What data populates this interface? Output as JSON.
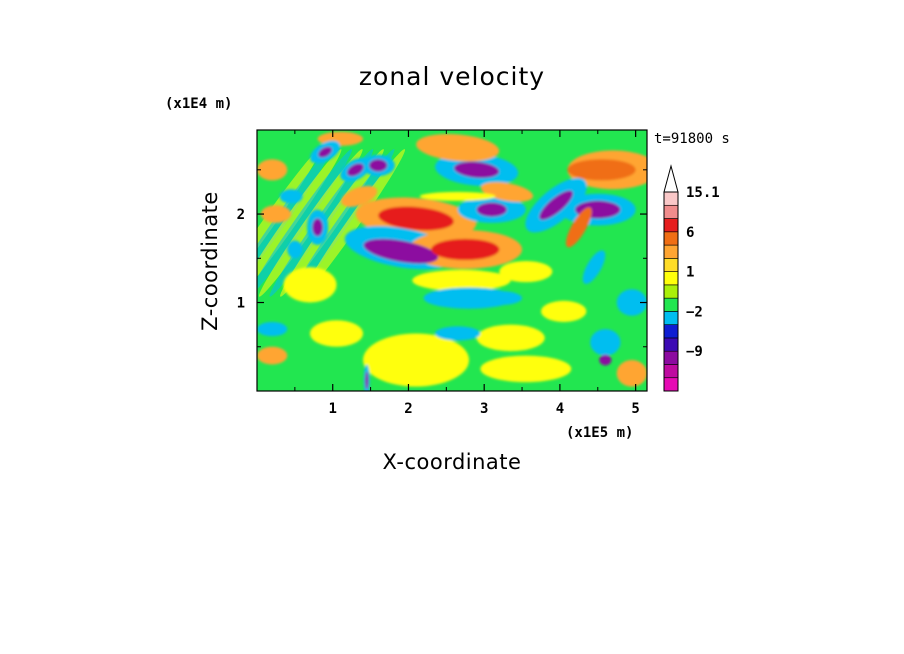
{
  "chart_data": {
    "type": "heatmap",
    "title": "zonal velocity",
    "xlabel": "X-coordinate",
    "ylabel": "Z-coordinate",
    "x_scale_label": "(x1E5 m)",
    "y_scale_label": "(x1E4 m)",
    "time_label": "t=91800 s",
    "xlim": [
      0,
      5.15
    ],
    "ylim": [
      0,
      2.95
    ],
    "x_ticks": [
      "1",
      "2",
      "3",
      "4",
      "5"
    ],
    "y_ticks": [
      "1",
      "2"
    ],
    "colorbar": {
      "levels": [
        {
          "value": -13.6,
          "color": "#e60ab4"
        },
        {
          "value": -11.3,
          "color": "#be0aa0"
        },
        {
          "value": -9,
          "color": "#8c0aa0"
        },
        {
          "value": -6.7,
          "color": "#3c0ab4"
        },
        {
          "value": -4.3,
          "color": "#0f1ed2"
        },
        {
          "value": -2,
          "color": "#00bef0"
        },
        {
          "value": -1,
          "color": "#22e650"
        },
        {
          "value": 0,
          "color": "#aaf00a"
        },
        {
          "value": 1,
          "color": "#ffff0a"
        },
        {
          "value": 2,
          "color": "#ffdc28"
        },
        {
          "value": 3,
          "color": "#ffa532"
        },
        {
          "value": 6,
          "color": "#f06e14"
        },
        {
          "value": 9,
          "color": "#e61e1e"
        },
        {
          "value": 12,
          "color": "#f08c8c"
        },
        {
          "value": 15.1,
          "color": "#fac8c8"
        }
      ],
      "tick_labels": [
        "15.1",
        "6",
        "1",
        "-2",
        "-9"
      ],
      "extend_top_color": "#ffffff"
    },
    "features": [
      {
        "x": 1.9,
        "z": 1.58,
        "rx": 0.5,
        "rz": 0.12,
        "angle": -10,
        "value": -10
      },
      {
        "x": 1.9,
        "z": 1.62,
        "rx": 0.75,
        "rz": 0.22,
        "angle": -10,
        "value": -3
      },
      {
        "x": 2.1,
        "z": 1.95,
        "rx": 0.5,
        "rz": 0.13,
        "angle": -5,
        "value": 8
      },
      {
        "x": 2.1,
        "z": 1.95,
        "rx": 0.8,
        "rz": 0.23,
        "angle": -5,
        "value": 3
      },
      {
        "x": 2.75,
        "z": 1.6,
        "rx": 0.45,
        "rz": 0.12,
        "angle": 0,
        "value": 8
      },
      {
        "x": 2.75,
        "z": 1.6,
        "rx": 0.75,
        "rz": 0.22,
        "angle": 0,
        "value": 3
      },
      {
        "x": 2.9,
        "z": 2.5,
        "rx": 0.3,
        "rz": 0.09,
        "angle": -5,
        "value": -10
      },
      {
        "x": 2.9,
        "z": 2.5,
        "rx": 0.55,
        "rz": 0.18,
        "angle": -5,
        "value": -3
      },
      {
        "x": 2.65,
        "z": 2.75,
        "rx": 0.55,
        "rz": 0.15,
        "angle": -5,
        "value": 3
      },
      {
        "x": 3.1,
        "z": 2.05,
        "rx": 0.2,
        "rz": 0.08,
        "angle": 0,
        "value": -10
      },
      {
        "x": 3.1,
        "z": 2.05,
        "rx": 0.45,
        "rz": 0.15,
        "angle": 0,
        "value": -3
      },
      {
        "x": 3.3,
        "z": 2.25,
        "rx": 0.35,
        "rz": 0.1,
        "angle": -10,
        "value": 3
      },
      {
        "x": 3.95,
        "z": 2.1,
        "rx": 0.28,
        "rz": 0.08,
        "angle": 40,
        "value": -10
      },
      {
        "x": 3.95,
        "z": 2.1,
        "rx": 0.5,
        "rz": 0.18,
        "angle": 40,
        "value": -3
      },
      {
        "x": 4.55,
        "z": 2.5,
        "rx": 0.45,
        "rz": 0.12,
        "angle": 0,
        "value": 6
      },
      {
        "x": 4.7,
        "z": 2.5,
        "rx": 0.6,
        "rz": 0.22,
        "angle": 0,
        "value": 3
      },
      {
        "x": 4.5,
        "z": 2.05,
        "rx": 0.3,
        "rz": 0.1,
        "angle": 0,
        "value": -10
      },
      {
        "x": 4.5,
        "z": 2.05,
        "rx": 0.5,
        "rz": 0.18,
        "angle": 0,
        "value": -3
      },
      {
        "x": 4.25,
        "z": 1.85,
        "rx": 0.3,
        "rz": 0.08,
        "angle": 60,
        "value": 7
      },
      {
        "x": 4.45,
        "z": 1.4,
        "rx": 0.25,
        "rz": 0.08,
        "angle": 60,
        "value": -3
      },
      {
        "x": 1.6,
        "z": 2.55,
        "rx": 0.12,
        "rz": 0.07,
        "angle": 0,
        "value": -10
      },
      {
        "x": 1.6,
        "z": 2.55,
        "rx": 0.22,
        "rz": 0.12,
        "angle": 0,
        "value": -3
      },
      {
        "x": 1.3,
        "z": 2.5,
        "rx": 0.12,
        "rz": 0.06,
        "angle": 30,
        "value": -10
      },
      {
        "x": 1.3,
        "z": 2.5,
        "rx": 0.22,
        "rz": 0.11,
        "angle": 30,
        "value": -3
      },
      {
        "x": 0.9,
        "z": 2.7,
        "rx": 0.1,
        "rz": 0.05,
        "angle": 30,
        "value": -10
      },
      {
        "x": 0.9,
        "z": 2.7,
        "rx": 0.22,
        "rz": 0.1,
        "angle": 30,
        "value": -3
      },
      {
        "x": 0.8,
        "z": 1.85,
        "rx": 0.07,
        "rz": 0.1,
        "angle": 0,
        "value": -10
      },
      {
        "x": 0.8,
        "z": 1.85,
        "rx": 0.14,
        "rz": 0.2,
        "angle": 0,
        "value": -3
      },
      {
        "x": 0.5,
        "z": 1.6,
        "rx": 0.1,
        "rz": 0.1,
        "angle": 0,
        "value": -3
      },
      {
        "x": 1.35,
        "z": 2.2,
        "rx": 0.25,
        "rz": 0.1,
        "angle": 20,
        "value": 3
      },
      {
        "x": 1.1,
        "z": 2.85,
        "rx": 0.3,
        "rz": 0.08,
        "angle": 0,
        "value": 3
      },
      {
        "x": 0.2,
        "z": 2.5,
        "rx": 0.2,
        "rz": 0.12,
        "angle": 0,
        "value": 3
      },
      {
        "x": 0.45,
        "z": 2.2,
        "rx": 0.15,
        "rz": 0.08,
        "angle": 0,
        "value": -3
      },
      {
        "x": 0.25,
        "z": 2.0,
        "rx": 0.2,
        "rz": 0.1,
        "angle": 0,
        "value": 3
      },
      {
        "x": 0.2,
        "z": 0.7,
        "rx": 0.2,
        "rz": 0.08,
        "angle": 0,
        "value": -3
      },
      {
        "x": 0.2,
        "z": 0.4,
        "rx": 0.2,
        "rz": 0.1,
        "angle": 0,
        "value": 3
      },
      {
        "x": 0.7,
        "z": 1.2,
        "rx": 0.35,
        "rz": 0.2,
        "angle": 0,
        "value": 1.5
      },
      {
        "x": 1.05,
        "z": 0.65,
        "rx": 0.35,
        "rz": 0.15,
        "angle": 0,
        "value": 1.5
      },
      {
        "x": 2.1,
        "z": 0.35,
        "rx": 0.7,
        "rz": 0.3,
        "angle": 0,
        "value": 1.5
      },
      {
        "x": 3.35,
        "z": 0.6,
        "rx": 0.45,
        "rz": 0.15,
        "angle": 0,
        "value": 1.5
      },
      {
        "x": 2.8,
        "z": 1.05,
        "rx": 0.6,
        "rz": 0.12,
        "angle": 0,
        "value": -3
      },
      {
        "x": 3.2,
        "z": 1.05,
        "rx": 0.3,
        "rz": 0.08,
        "angle": 0,
        "value": -2.5
      },
      {
        "x": 2.7,
        "z": 1.25,
        "rx": 0.65,
        "rz": 0.12,
        "angle": 0,
        "value": 1.5
      },
      {
        "x": 3.55,
        "z": 1.35,
        "rx": 0.35,
        "rz": 0.12,
        "angle": 0,
        "value": 1.5
      },
      {
        "x": 4.05,
        "z": 0.9,
        "rx": 0.3,
        "rz": 0.12,
        "angle": 0,
        "value": 1.5
      },
      {
        "x": 3.55,
        "z": 0.25,
        "rx": 0.6,
        "rz": 0.15,
        "angle": 0,
        "value": 1.5
      },
      {
        "x": 4.6,
        "z": 0.55,
        "rx": 0.2,
        "rz": 0.15,
        "angle": 0,
        "value": -3
      },
      {
        "x": 4.6,
        "z": 0.35,
        "rx": 0.08,
        "rz": 0.06,
        "angle": 0,
        "value": -10
      },
      {
        "x": 4.95,
        "z": 1.0,
        "rx": 0.2,
        "rz": 0.15,
        "angle": 0,
        "value": -3
      },
      {
        "x": 4.95,
        "z": 0.2,
        "rx": 0.2,
        "rz": 0.15,
        "angle": 0,
        "value": 3
      },
      {
        "x": 1.45,
        "z": 0.12,
        "rx": 0.04,
        "rz": 0.18,
        "angle": 0,
        "value": -3
      },
      {
        "x": 1.45,
        "z": 0.12,
        "rx": 0.02,
        "rz": 0.1,
        "angle": 0,
        "value": -10
      },
      {
        "x": 2.65,
        "z": 0.65,
        "rx": 0.3,
        "rz": 0.08,
        "angle": 0,
        "value": -2.5
      },
      {
        "x": 2.65,
        "z": 2.2,
        "rx": 0.5,
        "rz": 0.05,
        "angle": 0,
        "value": 1.5
      }
    ]
  }
}
